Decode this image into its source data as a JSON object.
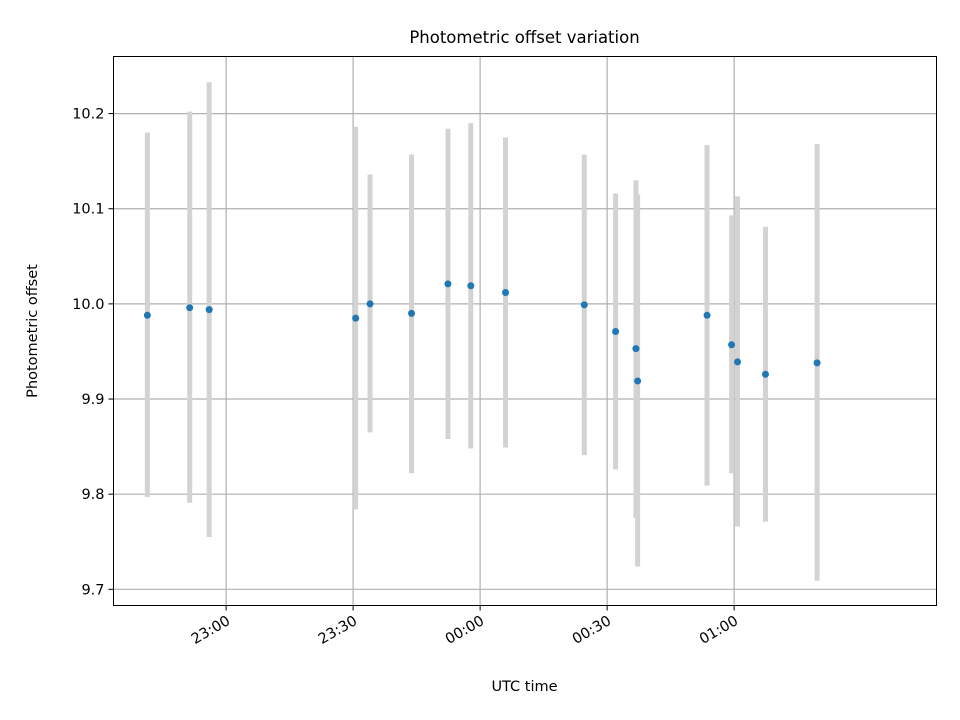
{
  "chart_data": {
    "type": "scatter",
    "title": "Photometric offset variation",
    "xlabel": "UTC time",
    "ylabel": "Photometric offset",
    "x_unit": "UTC",
    "xlim": [
      "22:33:24",
      "01:47:48"
    ],
    "ylim": [
      9.683,
      10.26
    ],
    "x_ticks": [
      "23:00",
      "23:30",
      "00:00",
      "00:30",
      "01:00"
    ],
    "y_ticks": [
      "9.7",
      "9.8",
      "9.9",
      "10.0",
      "10.1",
      "10.2"
    ],
    "grid": true,
    "series": [
      {
        "points": [
          {
            "time": "22:41:24",
            "y": 9.988,
            "ylow": 9.797,
            "yhigh": 10.18
          },
          {
            "time": "22:51:24",
            "y": 9.996,
            "ylow": 9.791,
            "yhigh": 10.202
          },
          {
            "time": "22:56:00",
            "y": 9.994,
            "ylow": 9.755,
            "yhigh": 10.233
          },
          {
            "time": "23:30:36",
            "y": 9.985,
            "ylow": 9.784,
            "yhigh": 10.186
          },
          {
            "time": "23:34:00",
            "y": 10.0,
            "ylow": 9.865,
            "yhigh": 10.136
          },
          {
            "time": "23:43:48",
            "y": 9.99,
            "ylow": 9.822,
            "yhigh": 10.157
          },
          {
            "time": "23:52:24",
            "y": 10.021,
            "ylow": 9.858,
            "yhigh": 10.184
          },
          {
            "time": "23:57:48",
            "y": 10.019,
            "ylow": 9.848,
            "yhigh": 10.19
          },
          {
            "time": "00:06:00",
            "y": 10.012,
            "ylow": 9.849,
            "yhigh": 10.175
          },
          {
            "time": "00:24:36",
            "y": 9.999,
            "ylow": 9.841,
            "yhigh": 10.157
          },
          {
            "time": "00:32:00",
            "y": 9.971,
            "ylow": 9.826,
            "yhigh": 10.116
          },
          {
            "time": "00:36:48",
            "y": 9.953,
            "ylow": 9.775,
            "yhigh": 10.13
          },
          {
            "time": "00:37:12",
            "y": 9.919,
            "ylow": 9.724,
            "yhigh": 10.115
          },
          {
            "time": "00:53:36",
            "y": 9.988,
            "ylow": 9.809,
            "yhigh": 10.167
          },
          {
            "time": "00:59:24",
            "y": 9.957,
            "ylow": 9.822,
            "yhigh": 10.093
          },
          {
            "time": "01:00:48",
            "y": 9.939,
            "ylow": 9.766,
            "yhigh": 10.113
          },
          {
            "time": "01:07:24",
            "y": 9.926,
            "ylow": 9.771,
            "yhigh": 10.081
          },
          {
            "time": "01:19:36",
            "y": 9.938,
            "ylow": 9.709,
            "yhigh": 10.168
          }
        ]
      }
    ]
  },
  "colors": {
    "point": "#1f77b4",
    "errorbar": "#d3d3d3",
    "grid": "#b0b0b0",
    "axis": "#000000"
  }
}
